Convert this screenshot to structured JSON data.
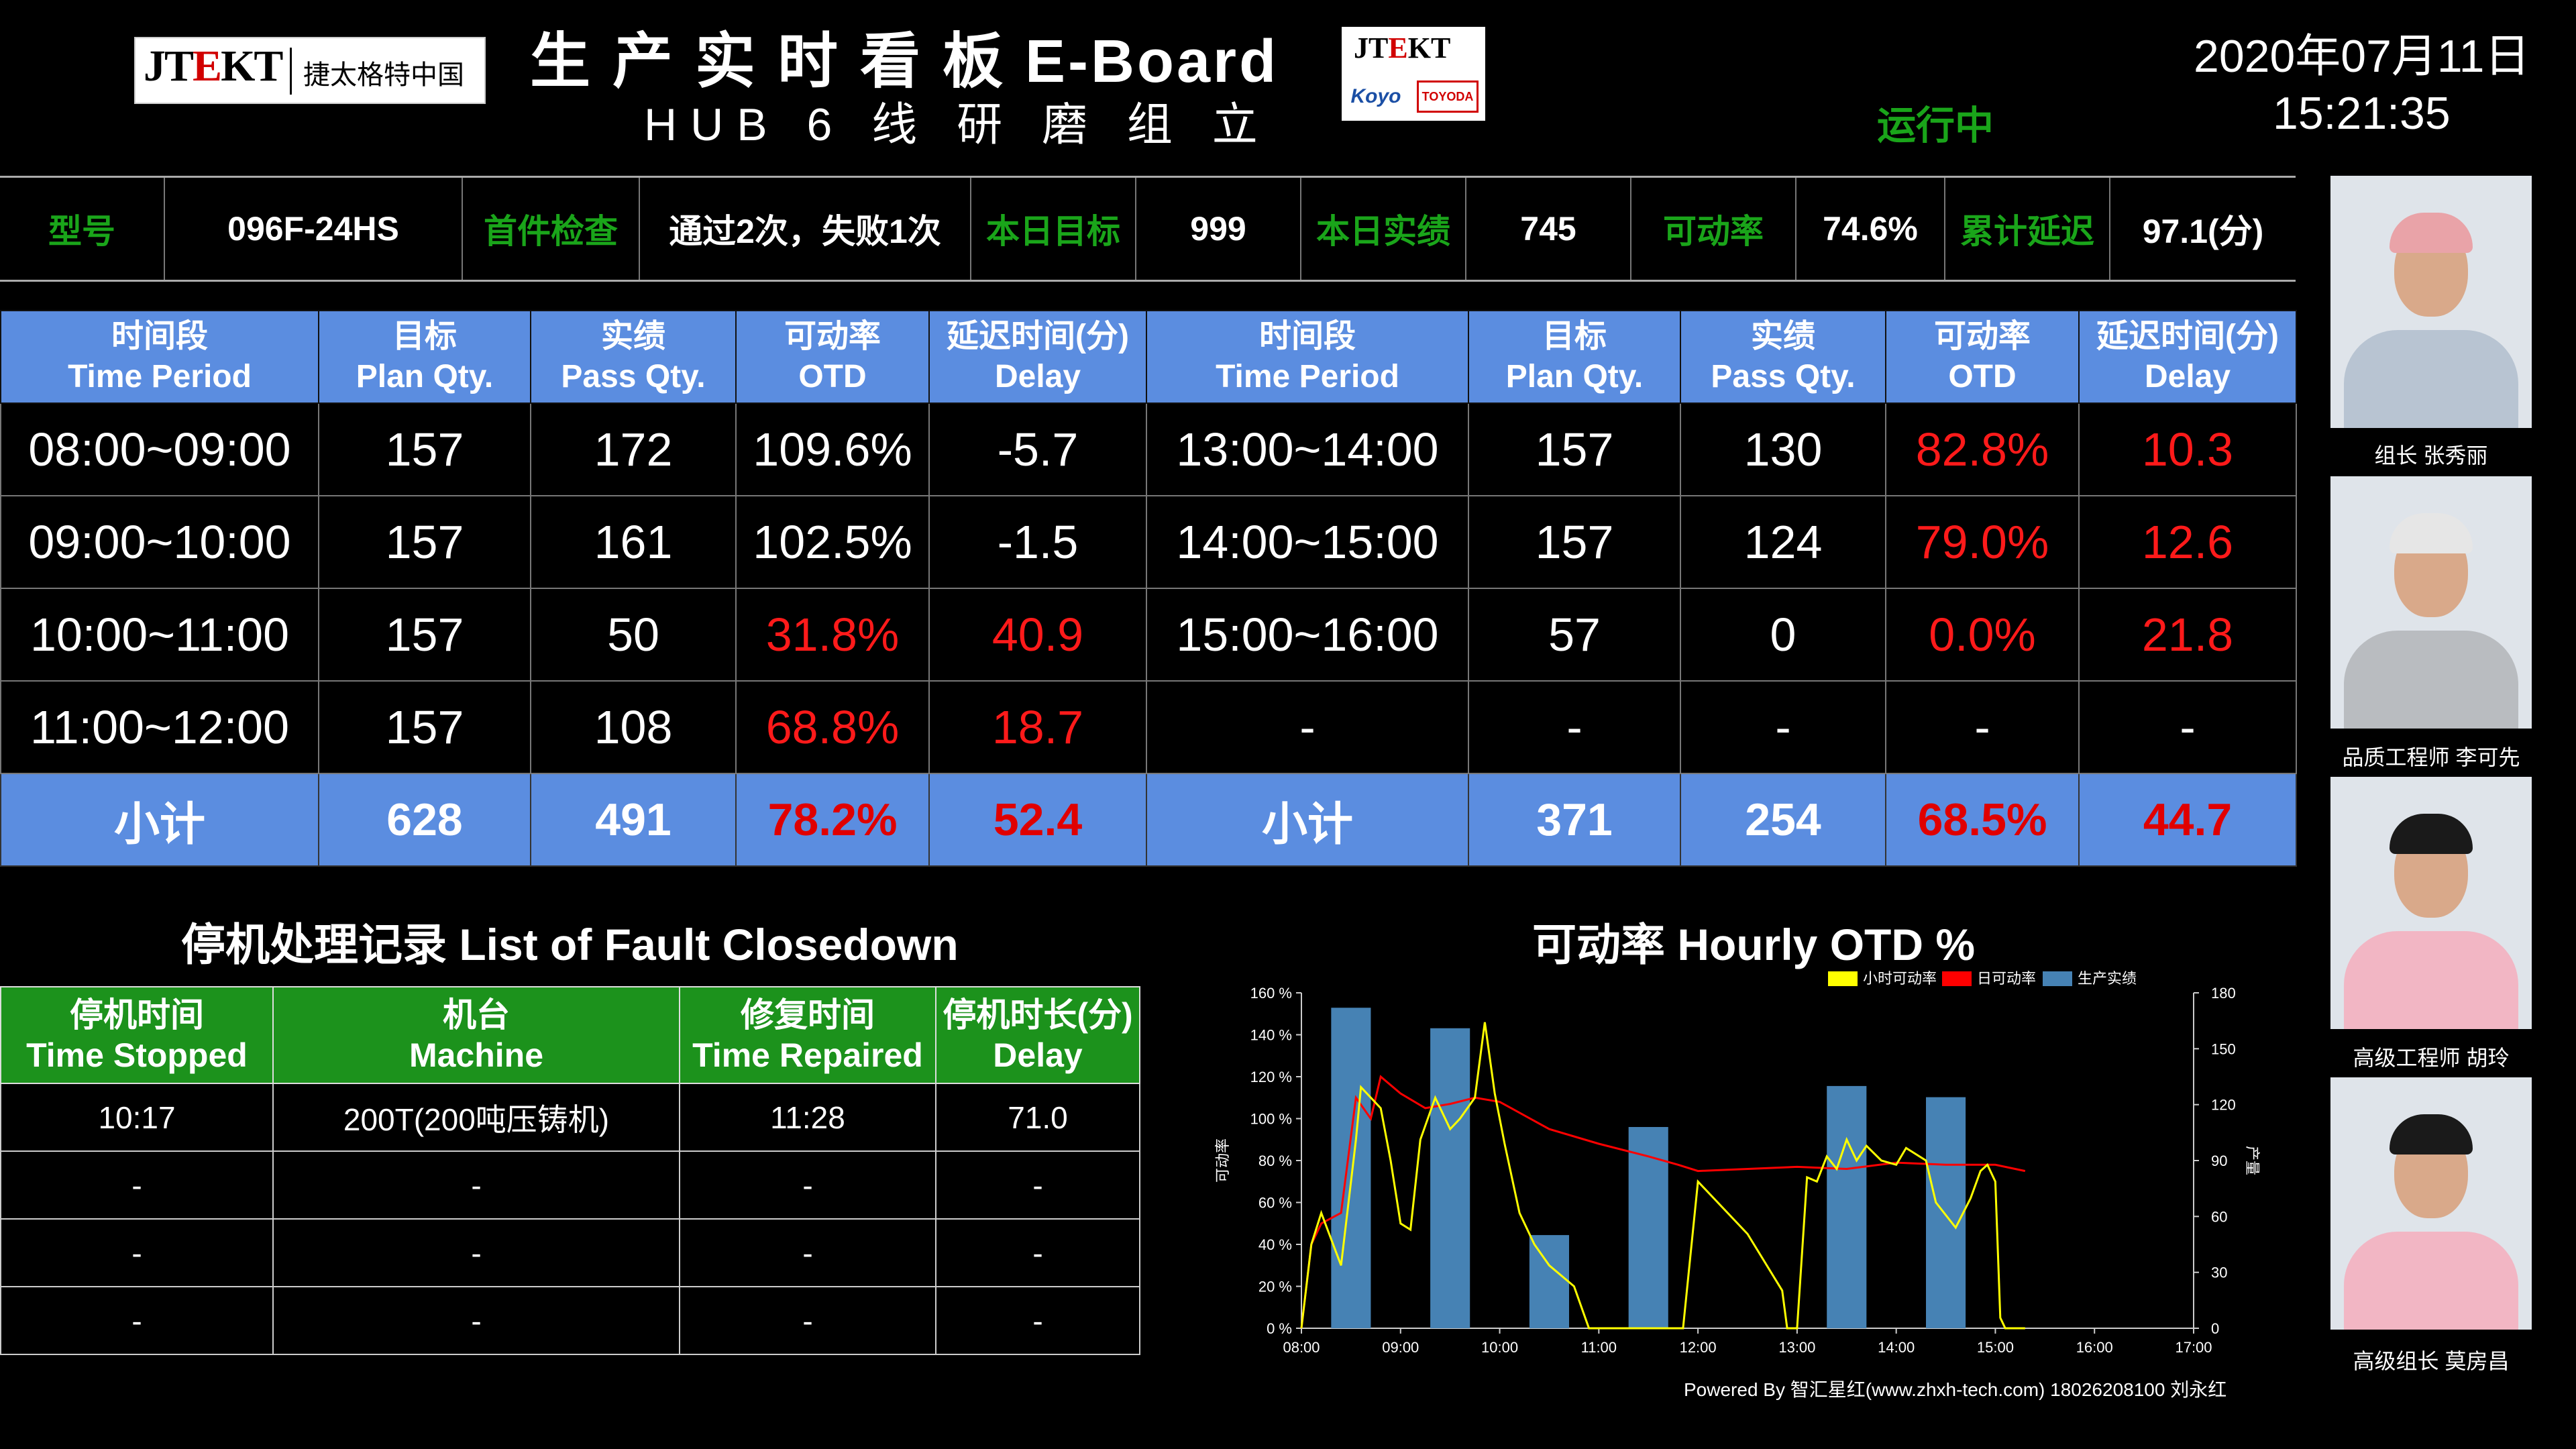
{
  "header": {
    "logo_left_brand": "JTEKT",
    "logo_left_cn": "捷太格特中国",
    "title": "生 产 实 时 看 板 E-Board",
    "subtitle": "HUB 6 线 研 磨 组 立",
    "logo_right_brand": "JTEKT",
    "logo_right_koyo": "Koyo",
    "logo_right_toyoda": "TOYODA",
    "status": "运行中",
    "date": "2020年07月11日",
    "time": "15:21:35"
  },
  "info": {
    "model_label": "型号",
    "model_value": "096F-24HS",
    "first_check_label": "首件检查",
    "first_check_value": "通过2次，失败1次",
    "target_label": "本日目标",
    "target_value": "999",
    "actual_label": "本日实绩",
    "actual_value": "745",
    "otd_label": "可动率",
    "otd_value": "74.6%",
    "delay_label": "累计延迟",
    "delay_value": "97.1(分)"
  },
  "prod_headers": [
    {
      "cn": "时间段",
      "en": "Time Period"
    },
    {
      "cn": "目标",
      "en": "Plan Qty."
    },
    {
      "cn": "实绩",
      "en": "Pass Qty."
    },
    {
      "cn": "可动率",
      "en": "OTD"
    },
    {
      "cn": "延迟时间(分)",
      "en": "Delay"
    }
  ],
  "prod_rows": [
    {
      "l": {
        "period": "08:00~09:00",
        "plan": "157",
        "pass": "172",
        "otd": "109.6%",
        "delay": "-5.7",
        "bad": false
      },
      "r": {
        "period": "13:00~14:00",
        "plan": "157",
        "pass": "130",
        "otd": "82.8%",
        "delay": "10.3",
        "bad": true
      }
    },
    {
      "l": {
        "period": "09:00~10:00",
        "plan": "157",
        "pass": "161",
        "otd": "102.5%",
        "delay": "-1.5",
        "bad": false
      },
      "r": {
        "period": "14:00~15:00",
        "plan": "157",
        "pass": "124",
        "otd": "79.0%",
        "delay": "12.6",
        "bad": true
      }
    },
    {
      "l": {
        "period": "10:00~11:00",
        "plan": "157",
        "pass": "50",
        "otd": "31.8%",
        "delay": "40.9",
        "bad": true
      },
      "r": {
        "period": "15:00~16:00",
        "plan": "57",
        "pass": "0",
        "otd": "0.0%",
        "delay": "21.8",
        "bad": true
      }
    },
    {
      "l": {
        "period": "11:00~12:00",
        "plan": "157",
        "pass": "108",
        "otd": "68.8%",
        "delay": "18.7",
        "bad": true
      },
      "r": {
        "period": "-",
        "plan": "-",
        "pass": "-",
        "otd": "-",
        "delay": "-",
        "bad": false
      }
    }
  ],
  "prod_subtotal": {
    "l": {
      "period": "小计",
      "plan": "628",
      "pass": "491",
      "otd": "78.2%",
      "delay": "52.4"
    },
    "r": {
      "period": "小计",
      "plan": "371",
      "pass": "254",
      "otd": "68.5%",
      "delay": "44.7"
    }
  },
  "fault": {
    "title": "停机处理记录 List of Fault Closedown",
    "headers": [
      {
        "cn": "停机时间",
        "en": "Time Stopped"
      },
      {
        "cn": "机台",
        "en": "Machine"
      },
      {
        "cn": "修复时间",
        "en": "Time Repaired"
      },
      {
        "cn": "停机时长(分)",
        "en": "Delay"
      }
    ],
    "rows": [
      [
        "10:17",
        "200T(200吨压铸机)",
        "11:28",
        "71.0"
      ],
      [
        "-",
        "-",
        "-",
        "-"
      ],
      [
        "-",
        "-",
        "-",
        "-"
      ],
      [
        "-",
        "-",
        "-",
        "-"
      ]
    ]
  },
  "chart_title": "可动率 Hourly OTD %",
  "chart_data": {
    "type": "bar+line",
    "x_ticks": [
      "08:00",
      "09:00",
      "10:00",
      "11:00",
      "12:00",
      "13:00",
      "14:00",
      "15:00",
      "16:00",
      "17:00"
    ],
    "ylabel_left": "可动率",
    "ylabel_right": "产量",
    "ylim_left": [
      0,
      160
    ],
    "yticks_left": [
      "0 %",
      "20 %",
      "40 %",
      "60 %",
      "80 %",
      "100 %",
      "120 %",
      "140 %",
      "160 %"
    ],
    "ylim_right": [
      0,
      180
    ],
    "yticks_right": [
      "0",
      "30",
      "60",
      "90",
      "120",
      "150",
      "180"
    ],
    "legend": [
      "小时可动率",
      "日可动率",
      "生产实绩"
    ],
    "legend_position": "top-right",
    "colors": {
      "hourly": "#ffff00",
      "daily": "#ff0000",
      "bars": "#4682b4"
    },
    "bars": {
      "name": "生产实绩",
      "categories": [
        "08:00~09:00",
        "09:00~10:00",
        "10:00~11:00",
        "11:00~12:00",
        "13:00~14:00",
        "14:00~15:00",
        "15:00~16:00"
      ],
      "x": [
        8.5,
        9.5,
        10.5,
        11.5,
        13.5,
        14.5,
        15.5
      ],
      "values": [
        172,
        161,
        50,
        108,
        130,
        124,
        0
      ]
    },
    "hourly_otd": {
      "name": "小时可动率",
      "x": [
        8.0,
        8.1,
        8.2,
        8.4,
        8.55,
        8.6,
        8.8,
        8.9,
        9.0,
        9.1,
        9.2,
        9.35,
        9.5,
        9.6,
        9.75,
        9.85,
        9.95,
        10.05,
        10.2,
        10.35,
        10.5,
        10.75,
        10.9,
        11.5,
        11.85,
        12.0,
        12.5,
        12.85,
        12.9,
        12.95,
        13.0,
        13.1,
        13.2,
        13.3,
        13.4,
        13.5,
        13.6,
        13.7,
        13.85,
        14.0,
        14.1,
        14.2,
        14.3,
        14.4,
        14.6,
        14.75,
        14.85,
        14.92,
        15.0,
        15.05,
        15.1,
        15.3
      ],
      "y": [
        0,
        40,
        55,
        30,
        90,
        115,
        105,
        80,
        50,
        47,
        90,
        110,
        95,
        100,
        110,
        146,
        112,
        88,
        55,
        40,
        30,
        20,
        0,
        0,
        0,
        70,
        45,
        18,
        0,
        0,
        0,
        72,
        70,
        82,
        76,
        90,
        80,
        87,
        80,
        78,
        86,
        83,
        80,
        60,
        48,
        62,
        75,
        78,
        70,
        5,
        0,
        0
      ]
    },
    "daily_otd": {
      "name": "日可动率",
      "x": [
        8.0,
        8.1,
        8.2,
        8.4,
        8.55,
        8.7,
        8.8,
        9.0,
        9.25,
        9.5,
        9.75,
        10.0,
        10.5,
        11.0,
        11.5,
        11.8,
        12.0,
        13.0,
        13.5,
        14.0,
        14.5,
        15.0,
        15.3
      ],
      "y": [
        0,
        40,
        50,
        55,
        110,
        100,
        120,
        112,
        105,
        107,
        110,
        108,
        95,
        88,
        82,
        78,
        75,
        77,
        76,
        79,
        78,
        78,
        75
      ]
    },
    "ylim_bars": [
      0,
      180
    ]
  },
  "powered_by": "Powered By 智汇星红(www.zhxh-tech.com) 18026208100 刘永红",
  "staff": [
    {
      "caption": "组长 张秀丽"
    },
    {
      "caption": "品质工程师 李可先"
    },
    {
      "caption": "高级工程师 胡玲"
    },
    {
      "caption": "高级组长 莫房昌"
    }
  ]
}
